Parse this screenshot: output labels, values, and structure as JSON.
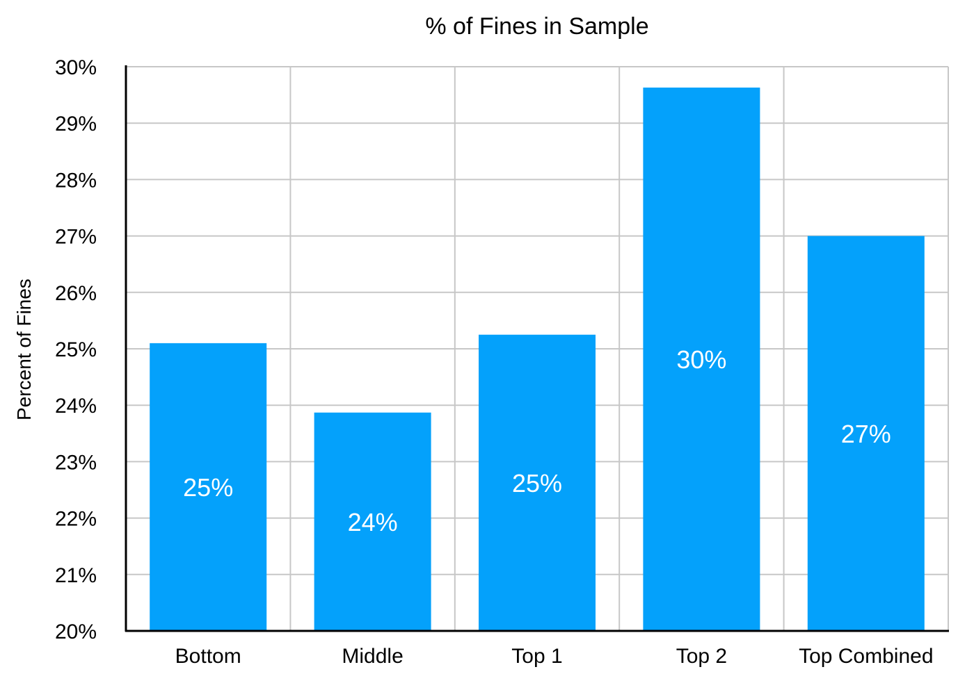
{
  "chart_data": {
    "type": "bar",
    "title": "% of Fines in Sample",
    "xlabel": "",
    "ylabel": "Percent of Fines",
    "categories": [
      "Bottom",
      "Middle",
      "Top 1",
      "Top 2",
      "Top Combined"
    ],
    "values": [
      25.1,
      23.87,
      25.25,
      29.63,
      27.0
    ],
    "data_labels": [
      "25%",
      "24%",
      "25%",
      "30%",
      "27%"
    ],
    "ylim": [
      20,
      30
    ],
    "yticks": [
      20,
      21,
      22,
      23,
      24,
      25,
      26,
      27,
      28,
      29,
      30
    ],
    "ytick_labels": [
      "20%",
      "21%",
      "22%",
      "23%",
      "24%",
      "25%",
      "26%",
      "27%",
      "28%",
      "29%",
      "30%"
    ],
    "grid": true,
    "legend": "none",
    "colors": {
      "bar": "#04a1fb",
      "bar_label": "#ffffff",
      "grid": "#c7c7c7",
      "axis": "#000000",
      "text": "#000000"
    }
  }
}
